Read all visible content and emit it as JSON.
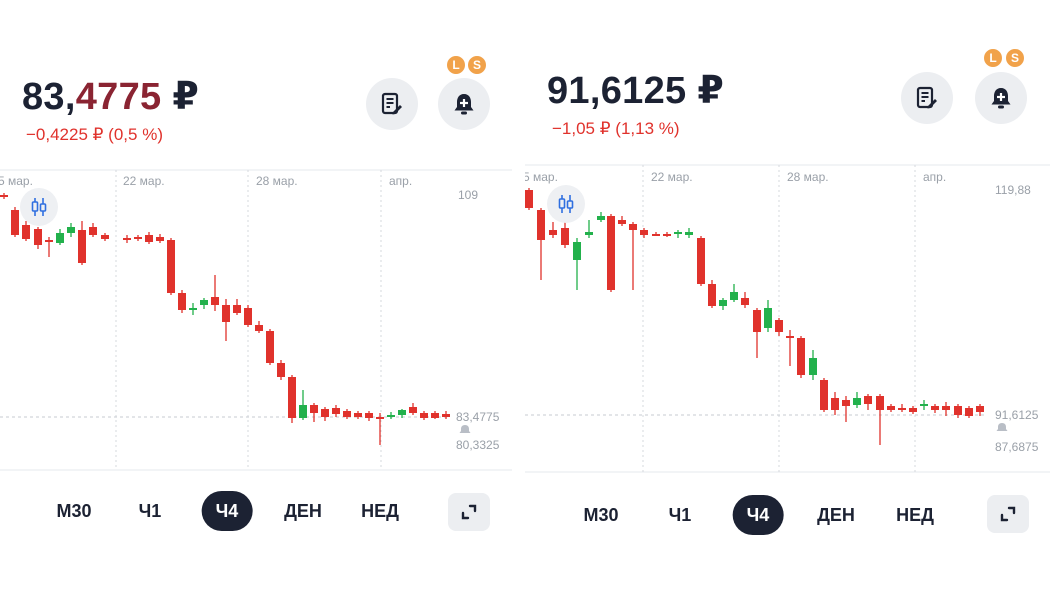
{
  "left": {
    "price_main": "83,",
    "price_fraction": "4775",
    "price_currency": "₽",
    "change": "−0,4225 ₽ (0,5 %)",
    "badges": [
      "L",
      "S"
    ],
    "chart": {
      "date_labels": [
        "5 мар.",
        "22 мар.",
        "28 мар.",
        "апр."
      ],
      "top_value": "109",
      "current_value": "83,4775",
      "alert_value": "80,3325"
    },
    "timeframes": [
      "М30",
      "Ч1",
      "Ч4",
      "ДЕН",
      "НЕД"
    ],
    "active_timeframe": "Ч4"
  },
  "right": {
    "price": "91,6125 ₽",
    "change": "−1,05 ₽ (1,13 %)",
    "badges": [
      "L",
      "S"
    ],
    "chart": {
      "date_labels": [
        "5 мар.",
        "22 мар.",
        "28 мар.",
        "апр."
      ],
      "top_value": "119,88",
      "current_value": "91,6125",
      "alert_value": "87,6875"
    },
    "timeframes": [
      "М30",
      "Ч1",
      "Ч4",
      "ДЕН",
      "НЕД"
    ],
    "active_timeframe": "Ч4"
  },
  "colors": {
    "up": "#22b14c",
    "down": "#e0322c",
    "dark": "#1c2233",
    "badge": "#f1a24a"
  },
  "icons": [
    "notes-icon",
    "bell-plus-icon",
    "candles-toggle-icon",
    "expand-icon",
    "bell-small-icon"
  ]
}
